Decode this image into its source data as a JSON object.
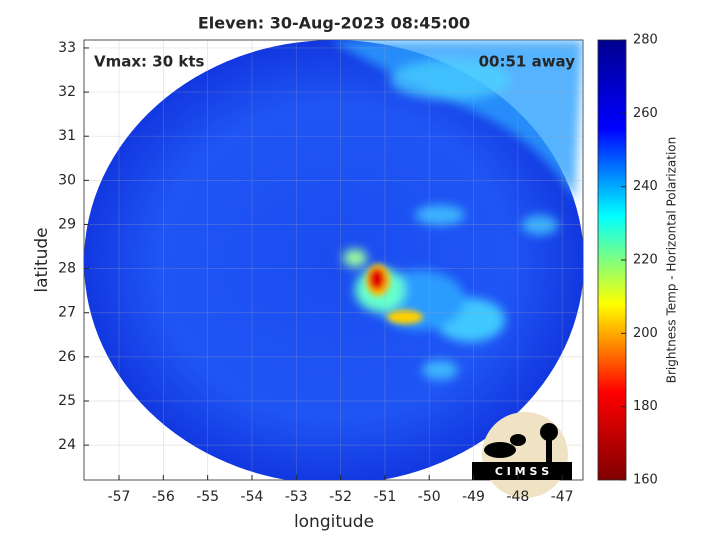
{
  "chart_data": {
    "type": "image",
    "title": "Eleven: 30-Aug-2023 08:45:00",
    "xlabel": "longitude",
    "ylabel": "latitude",
    "annotations": [
      "Vmax: 30 kts",
      "00:51 away"
    ],
    "xlim": [
      -57.79,
      -46.53
    ],
    "xticks": [
      -57,
      -56,
      -55,
      -54,
      -53,
      -52,
      -51,
      -50,
      -49,
      -48,
      -47
    ],
    "ylim": [
      23.21,
      33.18
    ],
    "yticks": [
      24,
      25,
      26,
      27,
      28,
      29,
      30,
      31,
      32,
      33
    ],
    "grid": true,
    "colorbar": {
      "label": "Brightness Temp - Horizontal Polarization",
      "lim": [
        160,
        280
      ],
      "ticks": [
        160,
        180,
        200,
        220,
        240,
        260,
        280
      ],
      "colormap": [
        "#800000",
        "#ff0000",
        "#ffff00",
        "#00ffff",
        "#0000ff",
        "#00008f"
      ]
    }
  },
  "logo_text": "C I M S S"
}
